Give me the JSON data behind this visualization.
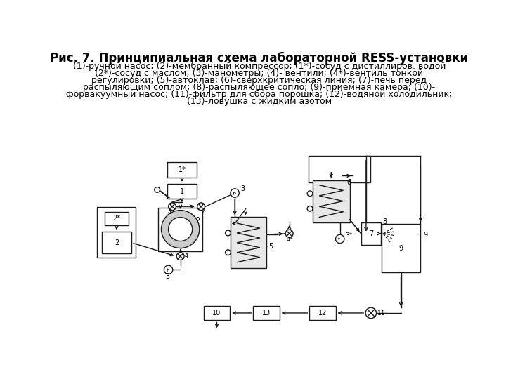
{
  "title": "Рис. 7. Принципиальная схема лабораторной RESS-установки",
  "caption_lines": [
    "(1)-ручной насос; (2)-мембранный компрессор; (1*)-сосуд с дистиллиров. водой",
    "(2*)-сосуд с маслом; (3)-манометры; (4)- вентили; (4*)-вентиль тонкой",
    "регулировки; (5)-автоклав; (6)-сверхкритическая линия; (7)-печь перед",
    "распыляющим соплом; (8)-распыляющее сопло; (9)-приемная камера; (10)-",
    "форвакуумный насос; (11)-фильтр для сбора порошка; (12)-водяной холодильник;",
    "(13)-ловушка с жидким азотом"
  ],
  "bg_color": "#ffffff",
  "line_color": "#1a1a1a",
  "title_fontsize": 12,
  "caption_fontsize": 9
}
